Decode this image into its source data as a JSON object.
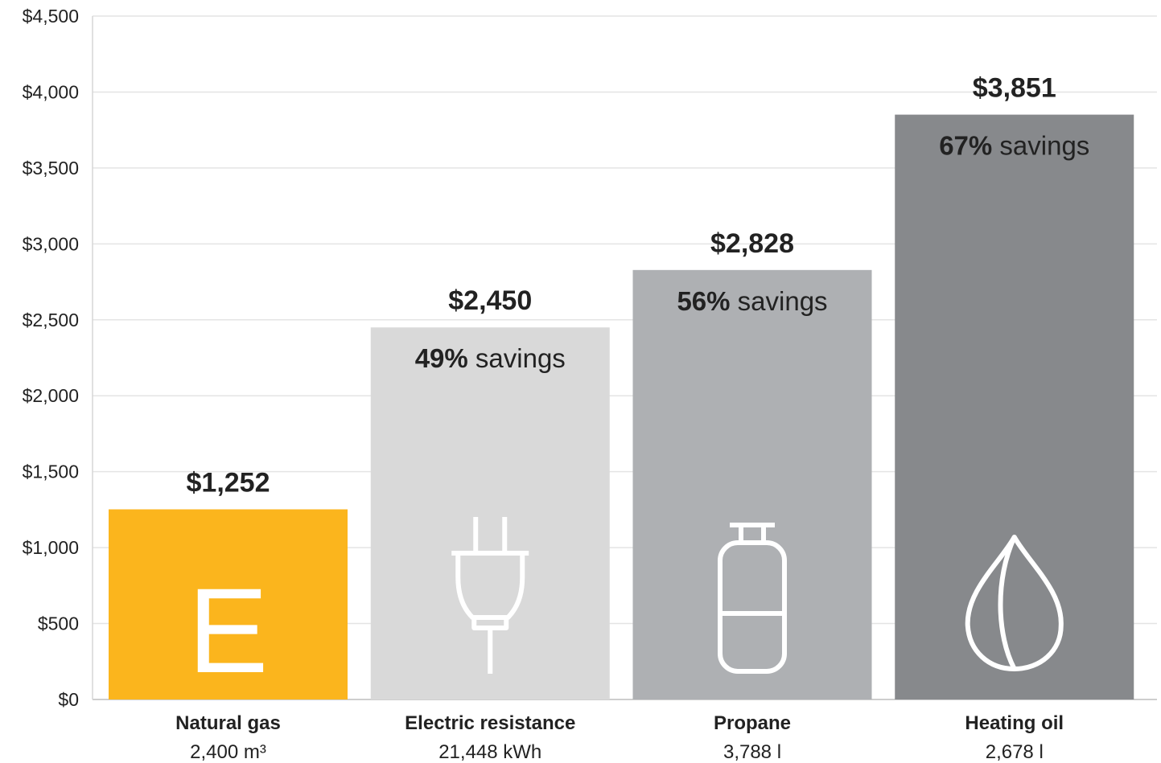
{
  "chart_data": {
    "type": "bar",
    "ylim": [
      0,
      4500
    ],
    "yticks": [
      0,
      500,
      1000,
      1500,
      2000,
      2500,
      3000,
      3500,
      4000,
      4500
    ],
    "ytick_labels": [
      "$0",
      "$500",
      "$1,000",
      "$1,500",
      "$2,000",
      "$2,500",
      "$3,000",
      "$3,500",
      "$4,000",
      "$4,500"
    ],
    "grid": true,
    "categories": [
      "Natural gas",
      "Electric resistance",
      "Propane",
      "Heating oil"
    ],
    "quantities": [
      "2,400 m³",
      "21,448 kWh",
      "3,788 l",
      "2,678 l"
    ],
    "values": [
      1252,
      2450,
      2828,
      3851
    ],
    "value_labels": [
      "$1,252",
      "$2,450",
      "$2,828",
      "$3,851"
    ],
    "savings": [
      "",
      "49%",
      "56%",
      "67%"
    ],
    "savings_word": "savings",
    "bar_colors": [
      "#FBB51D",
      "#D9D9D9",
      "#AEB0B3",
      "#87898C"
    ],
    "icons": [
      "natural-gas-logo-icon",
      "electric-plug-icon",
      "propane-tank-icon",
      "oil-drop-icon"
    ],
    "icon_letter": "E"
  }
}
